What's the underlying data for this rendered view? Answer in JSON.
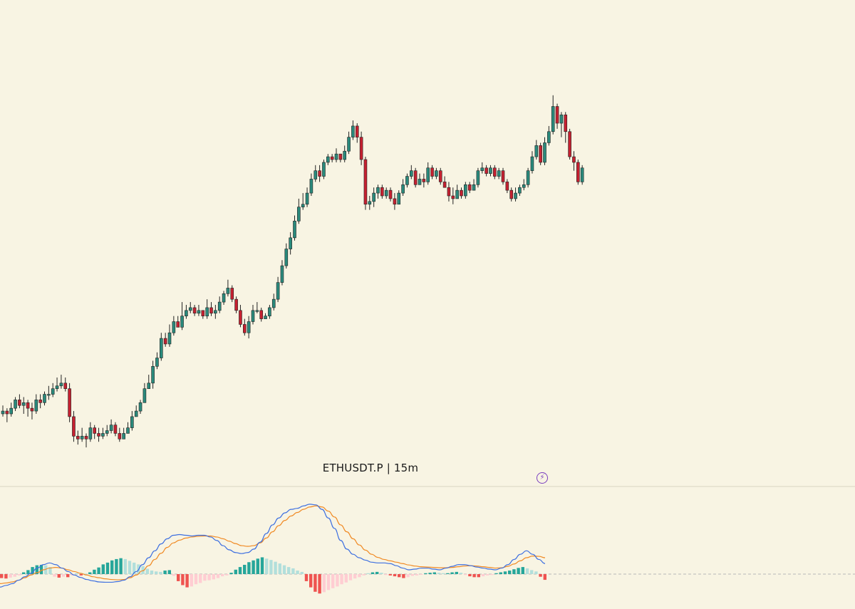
{
  "symbol": "ETHUSDT.P",
  "interval": "15m",
  "symbol_line": "ETHUSDT.P  |  15m",
  "colors": {
    "background": "#f8f4e3",
    "up": "#2a8a7c",
    "down": "#c62030",
    "macd_line": "#3d6fe0",
    "signal_line": "#f08a24",
    "hist_up_strong": "#26a69a",
    "hist_up_weak": "#b2dfdb",
    "hist_down_strong": "#ef5350",
    "hist_down_weak": "#ffcdd2",
    "pane_divider": "#d9d3c0",
    "zero_line": "#b8b8b8",
    "alert_icon": "#7b3fbf"
  },
  "icons": {
    "alert": "lightning-alert-icon"
  },
  "chart_data": [
    {
      "type": "candlestick",
      "title": "ETHUSDT.P | 15m",
      "grid": false,
      "axes_visible": false,
      "candles_ohlc_relative": [
        [
          53,
          54,
          56,
          52
        ],
        [
          54,
          53,
          55,
          50
        ],
        [
          53,
          55,
          57,
          52
        ],
        [
          55,
          58,
          59,
          54
        ],
        [
          58,
          56,
          60,
          55
        ],
        [
          56,
          57,
          59,
          53
        ],
        [
          57,
          55,
          58,
          52
        ],
        [
          55,
          54,
          57,
          51
        ],
        [
          54,
          58,
          60,
          53
        ],
        [
          58,
          57,
          60,
          55
        ],
        [
          57,
          60,
          61,
          56
        ],
        [
          60,
          60,
          63,
          58
        ],
        [
          60,
          62,
          64,
          59
        ],
        [
          62,
          63,
          66,
          61
        ],
        [
          63,
          64,
          67,
          62
        ],
        [
          64,
          62,
          66,
          61
        ],
        [
          62,
          52,
          64,
          50
        ],
        [
          52,
          45,
          54,
          43
        ],
        [
          45,
          44,
          47,
          42
        ],
        [
          44,
          45,
          48,
          43
        ],
        [
          45,
          44,
          46,
          41
        ],
        [
          44,
          48,
          50,
          43
        ],
        [
          48,
          46,
          49,
          44
        ],
        [
          46,
          45,
          48,
          43
        ],
        [
          45,
          46,
          48,
          44
        ],
        [
          46,
          47,
          49,
          45
        ],
        [
          47,
          49,
          51,
          46
        ],
        [
          49,
          46,
          50,
          45
        ],
        [
          46,
          44,
          48,
          43
        ],
        [
          44,
          46,
          48,
          44
        ],
        [
          46,
          48,
          50,
          46
        ],
        [
          48,
          52,
          54,
          47
        ],
        [
          52,
          54,
          56,
          52
        ],
        [
          54,
          57,
          58,
          53
        ],
        [
          57,
          62,
          64,
          57
        ],
        [
          62,
          64,
          67,
          62
        ],
        [
          64,
          70,
          72,
          62
        ],
        [
          70,
          73,
          75,
          69
        ],
        [
          73,
          80,
          82,
          72
        ],
        [
          80,
          78,
          82,
          77
        ],
        [
          78,
          82,
          85,
          77
        ],
        [
          82,
          86,
          88,
          81
        ],
        [
          86,
          84,
          88,
          84
        ],
        [
          84,
          88,
          93,
          83
        ],
        [
          88,
          90,
          92,
          87
        ],
        [
          90,
          91,
          93,
          89
        ],
        [
          91,
          89,
          92,
          88
        ],
        [
          89,
          90,
          92,
          88
        ],
        [
          90,
          88,
          90,
          87
        ],
        [
          88,
          91,
          94,
          87
        ],
        [
          91,
          89,
          93,
          88
        ],
        [
          89,
          90,
          92,
          87
        ],
        [
          90,
          93,
          95,
          89
        ],
        [
          93,
          96,
          97,
          92
        ],
        [
          96,
          98,
          101,
          95
        ],
        [
          98,
          94,
          99,
          93
        ],
        [
          94,
          90,
          95,
          89
        ],
        [
          90,
          85,
          92,
          84
        ],
        [
          85,
          82,
          87,
          81
        ],
        [
          82,
          86,
          88,
          80
        ],
        [
          86,
          90,
          92,
          85
        ],
        [
          90,
          90,
          93,
          89
        ],
        [
          90,
          87,
          91,
          86
        ],
        [
          87,
          88,
          89,
          87
        ],
        [
          88,
          91,
          92,
          87
        ],
        [
          91,
          94,
          96,
          90
        ],
        [
          94,
          100,
          102,
          93
        ],
        [
          100,
          106,
          108,
          99
        ],
        [
          106,
          112,
          114,
          105
        ],
        [
          112,
          116,
          118,
          110
        ],
        [
          116,
          122,
          124,
          115
        ],
        [
          122,
          127,
          130,
          121
        ],
        [
          127,
          128,
          132,
          126
        ],
        [
          128,
          132,
          134,
          127
        ],
        [
          132,
          137,
          139,
          131
        ],
        [
          137,
          140,
          142,
          136
        ],
        [
          140,
          138,
          142,
          136
        ],
        [
          138,
          143,
          144,
          137
        ],
        [
          143,
          145,
          146,
          142
        ],
        [
          145,
          144,
          146,
          143
        ],
        [
          144,
          146,
          148,
          143
        ],
        [
          146,
          144,
          146,
          143
        ],
        [
          144,
          147,
          149,
          143
        ],
        [
          147,
          152,
          154,
          146
        ],
        [
          152,
          156,
          158,
          151
        ],
        [
          156,
          152,
          157,
          150
        ],
        [
          152,
          144,
          154,
          142
        ],
        [
          144,
          128,
          145,
          126
        ],
        [
          128,
          129,
          131,
          126
        ],
        [
          129,
          132,
          134,
          127
        ],
        [
          132,
          134,
          135,
          130
        ],
        [
          134,
          131,
          135,
          130
        ],
        [
          131,
          133,
          134,
          130
        ],
        [
          133,
          130,
          134,
          129
        ],
        [
          130,
          128,
          132,
          126
        ],
        [
          128,
          132,
          133,
          128
        ],
        [
          132,
          135,
          137,
          131
        ],
        [
          135,
          138,
          139,
          134
        ],
        [
          138,
          140,
          142,
          137
        ],
        [
          140,
          135,
          141,
          134
        ],
        [
          135,
          137,
          139,
          135
        ],
        [
          137,
          136,
          139,
          134
        ],
        [
          136,
          141,
          143,
          135
        ],
        [
          141,
          138,
          142,
          137
        ],
        [
          138,
          140,
          141,
          137
        ],
        [
          140,
          136,
          141,
          135
        ],
        [
          136,
          134,
          138,
          134
        ],
        [
          134,
          131,
          136,
          129
        ],
        [
          131,
          130,
          134,
          128
        ],
        [
          130,
          133,
          135,
          130
        ],
        [
          133,
          131,
          134,
          130
        ],
        [
          131,
          135,
          136,
          130
        ],
        [
          135,
          133,
          136,
          132
        ],
        [
          133,
          135,
          137,
          133
        ],
        [
          135,
          140,
          141,
          134
        ],
        [
          140,
          141,
          143,
          139
        ],
        [
          141,
          139,
          142,
          138
        ],
        [
          139,
          141,
          142,
          138
        ],
        [
          141,
          138,
          142,
          137
        ],
        [
          138,
          140,
          141,
          137
        ],
        [
          140,
          136,
          141,
          135
        ],
        [
          136,
          133,
          137,
          132
        ],
        [
          133,
          130,
          134,
          129
        ],
        [
          130,
          132,
          134,
          129
        ],
        [
          132,
          134,
          135,
          131
        ],
        [
          134,
          135,
          137,
          133
        ],
        [
          135,
          140,
          141,
          134
        ],
        [
          140,
          145,
          147,
          139
        ],
        [
          145,
          149,
          151,
          144
        ],
        [
          149,
          143,
          150,
          142
        ],
        [
          143,
          150,
          152,
          142
        ],
        [
          150,
          154,
          156,
          149
        ],
        [
          154,
          163,
          167,
          153
        ],
        [
          163,
          157,
          164,
          155
        ],
        [
          157,
          160,
          161,
          152
        ],
        [
          160,
          154,
          161,
          150
        ],
        [
          154,
          145,
          155,
          144
        ],
        [
          145,
          143,
          147,
          140
        ],
        [
          143,
          136,
          144,
          135
        ],
        [
          136,
          141,
          142,
          135
        ]
      ]
    },
    {
      "type": "line",
      "indicator": "MACD",
      "series": [
        {
          "role": "macd",
          "values": [
            -5,
            -4.5,
            -4,
            -3,
            -2,
            -1,
            0.5,
            1.5,
            2,
            1.5,
            0.5,
            -0.5,
            -1.5,
            -2.2,
            -2.8,
            -3.2,
            -3.5,
            -3.6,
            -3.6,
            -3.4,
            -3,
            -2,
            -0.5,
            1.5,
            3.5,
            5.5,
            7.5,
            9,
            10,
            10.2,
            10,
            9.8,
            10,
            10,
            9.5,
            8.5,
            7,
            5.8,
            5,
            4.7,
            5,
            6,
            8,
            10.5,
            13,
            15,
            16.5,
            17.5,
            17.8,
            18.5,
            19,
            18.8,
            17.5,
            15,
            12,
            8.5,
            6,
            4.5,
            3.5,
            2.8,
            2.2,
            2,
            2,
            1.8,
            1.2,
            0.5,
            0,
            0.2,
            0.5,
            0.5,
            0.2,
            0,
            0.5,
            1,
            1.5,
            1.5,
            1.2,
            0.8,
            0.5,
            0.2,
            0,
            0.5,
            1.5,
            3,
            4.5,
            5.5,
            4.5,
            3,
            1.8
          ]
        },
        {
          "role": "signal",
          "values": [
            -4,
            -3.8,
            -3.5,
            -3,
            -2.3,
            -1.5,
            -0.8,
            0,
            0.5,
            0.7,
            0.5,
            0,
            -0.5,
            -1,
            -1.5,
            -2,
            -2.3,
            -2.6,
            -2.8,
            -2.9,
            -2.8,
            -2.3,
            -1.5,
            -0.3,
            1.2,
            3,
            4.8,
            6.5,
            7.8,
            8.6,
            9.2,
            9.5,
            9.7,
            9.8,
            9.8,
            9.5,
            9,
            8.3,
            7.6,
            7,
            6.8,
            7,
            7.8,
            9.2,
            11,
            12.8,
            14.3,
            15.6,
            16.6,
            17.5,
            18.2,
            18.5,
            18.2,
            17,
            15.3,
            13,
            11,
            9,
            7.2,
            5.7,
            4.5,
            3.6,
            3,
            2.6,
            2.2,
            1.8,
            1.4,
            1.1,
            0.9,
            0.8,
            0.7,
            0.6,
            0.6,
            0.7,
            0.9,
            1.1,
            1.2,
            1.1,
            0.9,
            0.7,
            0.5,
            0.6,
            1,
            1.7,
            2.6,
            3.5,
            4,
            3.9,
            3.5
          ]
        }
      ]
    },
    {
      "type": "bar",
      "indicator": "MACD histogram",
      "values": [
        -0.9,
        -1,
        -0.8,
        -0.6,
        -0.3,
        0.4,
        0.9,
        1.6,
        2,
        2.1,
        2,
        1.6,
        -0.6,
        -0.8,
        -0.6,
        -0.7,
        -0.3,
        0.2,
        -0.3,
        0.1,
        0.4,
        1,
        1.5,
        2.2,
        2.6,
        3.1,
        3.4,
        3.6,
        3.4,
        3,
        2.6,
        2.2,
        1.8,
        1.2,
        0.8,
        0.6,
        0.5,
        0.8,
        0.9,
        -0.4,
        -1.6,
        -2.5,
        -3,
        -2.8,
        -2.3,
        -2,
        -1.5,
        -1.4,
        -1.2,
        -0.9,
        -0.5,
        -0.3,
        0.3,
        1,
        1.6,
        2.1,
        2.7,
        3.1,
        3.5,
        3.8,
        3.5,
        3.2,
        2.8,
        2.4,
        2,
        1.6,
        1.3,
        0.8,
        0.5,
        -1.6,
        -3,
        -4,
        -4.4,
        -4.1,
        -3.6,
        -3.2,
        -2.8,
        -2.3,
        -1.9,
        -1.4,
        -1,
        -0.7,
        -0.3,
        0.2,
        0.4,
        0.5,
        0.3,
        -0.2,
        -0.3,
        -0.5,
        -0.7,
        -0.9,
        -0.7,
        -0.4,
        -0.3,
        -0.1,
        0.2,
        0.3,
        0.4,
        0.3,
        0.2,
        0.2,
        0.4,
        0.5,
        0.3,
        -0.2,
        -0.5,
        -0.7,
        -0.7,
        -0.5,
        -0.3,
        -0.2,
        0.2,
        0.4,
        0.6,
        0.8,
        1.1,
        1.4,
        1.6,
        1.3,
        0.9,
        0.6,
        -0.6,
        -1.3
      ]
    }
  ]
}
